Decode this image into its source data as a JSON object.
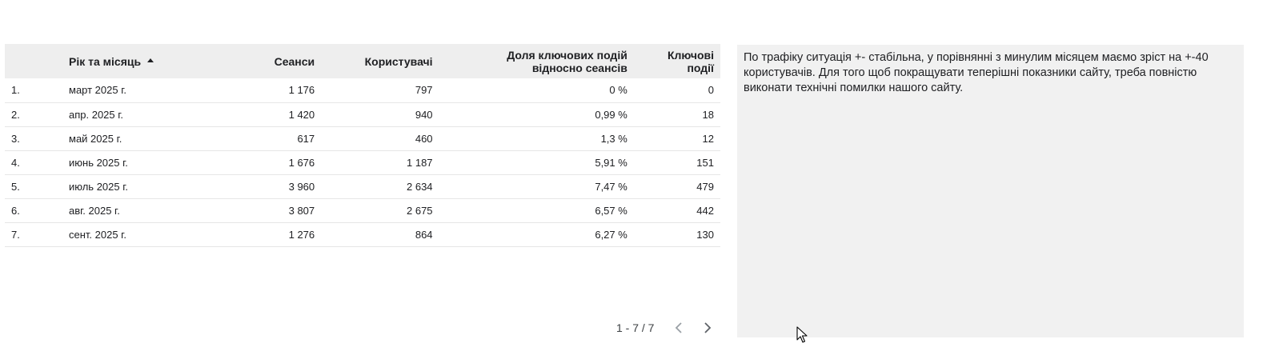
{
  "table": {
    "headers": {
      "index": "",
      "month": "Рік та місяць",
      "sessions": "Сеанси",
      "users": "Користувачі",
      "key_event_rate_line1": "Доля ключових подій",
      "key_event_rate_line2": "відносно сеансів",
      "key_events_line1": "Ключові",
      "key_events_line2": "події"
    },
    "sort_icon": "sort-ascending-icon",
    "rows": [
      {
        "index": "1.",
        "month": "март 2025 г.",
        "sessions": "1 176",
        "users": "797",
        "rate": "0 %",
        "key_events": "0"
      },
      {
        "index": "2.",
        "month": "апр. 2025 г.",
        "sessions": "1 420",
        "users": "940",
        "rate": "0,99 %",
        "key_events": "18"
      },
      {
        "index": "3.",
        "month": "май 2025 г.",
        "sessions": "617",
        "users": "460",
        "rate": "1,3 %",
        "key_events": "12"
      },
      {
        "index": "4.",
        "month": "июнь 2025 г.",
        "sessions": "1 676",
        "users": "1 187",
        "rate": "5,91 %",
        "key_events": "151"
      },
      {
        "index": "5.",
        "month": "июль 2025 г.",
        "sessions": "3 960",
        "users": "2 634",
        "rate": "7,47 %",
        "key_events": "479"
      },
      {
        "index": "6.",
        "month": "авг. 2025 г.",
        "sessions": "3 807",
        "users": "2 675",
        "rate": "6,57 %",
        "key_events": "442"
      },
      {
        "index": "7.",
        "month": "сент. 2025 г.",
        "sessions": "1 276",
        "users": "864",
        "rate": "6,27 %",
        "key_events": "130"
      }
    ]
  },
  "pagination": {
    "range": "1 - 7 / 7",
    "prev_icon": "chevron-left-icon",
    "next_icon": "chevron-right-icon"
  },
  "note": {
    "text": "По трафіку ситуація +- стабільна, у порівнянні з минулим місяцем маємо зріст на +-40 користувачів. Для того щоб покращувати теперішні показники сайту, треба повністю виконати технічні помилки нашого сайту."
  },
  "colors": {
    "header_bg": "#eeeeee",
    "note_bg": "#f1f1f1",
    "row_divider": "#e6e6e6"
  }
}
